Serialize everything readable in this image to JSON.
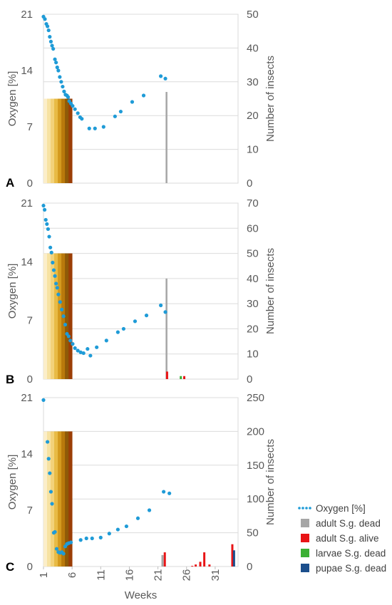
{
  "chart_data": [
    {
      "type": "scatter",
      "panel_label": "A",
      "ylabel_left": "Oxygen [%]",
      "ylabel_right": "Number of insects",
      "y_left_ticks": [
        0,
        7,
        14,
        21
      ],
      "y_right_ticks": [
        0,
        10,
        20,
        30,
        40,
        50
      ],
      "ylim_left": [
        0,
        21
      ],
      "ylim_right": [
        0,
        50
      ],
      "grid": true,
      "oxygen": [
        [
          1,
          20.7
        ],
        [
          1.25,
          20.4
        ],
        [
          1.5,
          19.8
        ],
        [
          1.7,
          19.5
        ],
        [
          1.9,
          19.0
        ],
        [
          2.1,
          18.2
        ],
        [
          2.3,
          17.6
        ],
        [
          2.5,
          17.1
        ],
        [
          2.7,
          16.7
        ],
        [
          3.0,
          15.4
        ],
        [
          3.2,
          15.0
        ],
        [
          3.4,
          14.4
        ],
        [
          3.6,
          14.0
        ],
        [
          3.85,
          13.2
        ],
        [
          4.1,
          12.6
        ],
        [
          4.35,
          12.0
        ],
        [
          4.6,
          11.4
        ],
        [
          4.85,
          11.0
        ],
        [
          5.1,
          10.9
        ],
        [
          5.3,
          10.7
        ],
        [
          5.5,
          10.2
        ],
        [
          5.8,
          9.9
        ],
        [
          6.1,
          9.6
        ],
        [
          6.5,
          9.2
        ],
        [
          7.0,
          8.7
        ],
        [
          7.4,
          8.2
        ],
        [
          7.7,
          8.0
        ],
        [
          9.0,
          6.8
        ],
        [
          10.0,
          6.8
        ],
        [
          11.5,
          7.0
        ],
        [
          13.5,
          8.3
        ],
        [
          14.5,
          8.9
        ],
        [
          16.5,
          10.1
        ],
        [
          18.5,
          10.9
        ],
        [
          21.5,
          13.3
        ],
        [
          22.3,
          13.0
        ]
      ],
      "insect_bars": [
        {
          "series": "adult S.g. dead",
          "week": 22.5,
          "value": 27
        }
      ],
      "development_value": 25
    },
    {
      "type": "scatter",
      "panel_label": "B",
      "ylabel_left": "Oxygen [%]",
      "ylabel_right": "Number of insects",
      "y_left_ticks": [
        0,
        7,
        14,
        21
      ],
      "y_right_ticks": [
        0,
        10,
        20,
        30,
        40,
        50,
        60,
        70
      ],
      "ylim_left": [
        0,
        21
      ],
      "ylim_right": [
        0,
        70
      ],
      "grid": true,
      "oxygen": [
        [
          1,
          20.7
        ],
        [
          1.2,
          20.2
        ],
        [
          1.4,
          19.0
        ],
        [
          1.6,
          18.5
        ],
        [
          1.8,
          17.9
        ],
        [
          2.0,
          17.0
        ],
        [
          2.2,
          15.7
        ],
        [
          2.4,
          15.1
        ],
        [
          2.6,
          13.9
        ],
        [
          2.8,
          13.0
        ],
        [
          3.0,
          12.3
        ],
        [
          3.2,
          11.4
        ],
        [
          3.4,
          10.9
        ],
        [
          3.6,
          10.1
        ],
        [
          3.9,
          9.2
        ],
        [
          4.2,
          8.3
        ],
        [
          4.5,
          7.5
        ],
        [
          4.8,
          6.5
        ],
        [
          5.1,
          5.4
        ],
        [
          5.4,
          5.1
        ],
        [
          5.7,
          4.6
        ],
        [
          6.1,
          4.2
        ],
        [
          6.5,
          3.7
        ],
        [
          7.0,
          3.4
        ],
        [
          7.5,
          3.2
        ],
        [
          8.0,
          3.1
        ],
        [
          8.7,
          3.6
        ],
        [
          9.2,
          2.8
        ],
        [
          10.3,
          3.8
        ],
        [
          12.0,
          4.6
        ],
        [
          14.0,
          5.6
        ],
        [
          15.0,
          6.0
        ],
        [
          17.0,
          6.9
        ],
        [
          19.0,
          7.6
        ],
        [
          21.5,
          8.8
        ],
        [
          22.3,
          8.0
        ]
      ],
      "insect_bars": [
        {
          "series": "adult S.g. dead",
          "week": 22.5,
          "value": 40
        },
        {
          "series": "adult S.g. alive",
          "week": 22.6,
          "value": 3
        },
        {
          "series": "adult S.g. alive",
          "week": 25.6,
          "value": 1.2
        },
        {
          "series": "larvae S.g. dead",
          "week": 25.0,
          "value": 1.2
        }
      ],
      "development_value": 50
    },
    {
      "type": "scatter",
      "panel_label": "C",
      "ylabel_left": "Oxygen [%]",
      "ylabel_right": "Number of insects",
      "xlabel": "Weeks",
      "x_ticks": [
        1,
        6,
        11,
        16,
        21,
        26,
        31
      ],
      "y_left_ticks": [
        0,
        7,
        14,
        21
      ],
      "y_right_ticks": [
        0,
        50,
        100,
        150,
        200,
        250
      ],
      "ylim_left": [
        0,
        21
      ],
      "ylim_right": [
        0,
        250
      ],
      "grid": true,
      "oxygen": [
        [
          1,
          20.7
        ],
        [
          1.7,
          15.5
        ],
        [
          1.9,
          13.4
        ],
        [
          2.1,
          11.6
        ],
        [
          2.3,
          9.3
        ],
        [
          2.5,
          7.8
        ],
        [
          2.8,
          4.2
        ],
        [
          3.0,
          4.3
        ],
        [
          3.3,
          2.2
        ],
        [
          3.6,
          1.8
        ],
        [
          3.9,
          1.7
        ],
        [
          4.2,
          1.8
        ],
        [
          4.5,
          1.6
        ],
        [
          4.8,
          2.5
        ],
        [
          5.1,
          2.8
        ],
        [
          5.4,
          2.9
        ],
        [
          5.8,
          3.0
        ],
        [
          7.5,
          3.3
        ],
        [
          8.5,
          3.5
        ],
        [
          9.5,
          3.5
        ],
        [
          11.0,
          3.6
        ],
        [
          12.5,
          4.1
        ],
        [
          14.0,
          4.6
        ],
        [
          15.5,
          5.0
        ],
        [
          17.5,
          6.0
        ],
        [
          19.5,
          7.0
        ],
        [
          22.0,
          9.3
        ],
        [
          23.0,
          9.1
        ]
      ],
      "insect_bars": [
        {
          "series": "adult S.g. dead",
          "week": 21.8,
          "value": 17
        },
        {
          "series": "adult S.g. alive",
          "week": 22.2,
          "value": 21
        },
        {
          "series": "adult S.g. alive",
          "week": 27.0,
          "value": 1
        },
        {
          "series": "adult S.g. alive",
          "week": 27.6,
          "value": 3
        },
        {
          "series": "adult S.g. alive",
          "week": 28.4,
          "value": 7
        },
        {
          "series": "adult S.g. alive",
          "week": 29.1,
          "value": 21
        },
        {
          "series": "adult S.g. alive",
          "week": 30.0,
          "value": 3
        },
        {
          "series": "adult S.g. alive",
          "week": 34.0,
          "value": 33
        },
        {
          "series": "pupae S.g. dead",
          "week": 34.3,
          "value": 24
        }
      ],
      "development_value": 200
    }
  ],
  "legend": [
    {
      "label": "Oxygen [%]",
      "kind": "dots",
      "color": "#1f9bd7"
    },
    {
      "label": "adult S.g. dead",
      "kind": "box",
      "color": "#a6a6a6"
    },
    {
      "label": "adult S.g. alive",
      "kind": "box",
      "color": "#e81416"
    },
    {
      "label": "larvae S.g. dead",
      "kind": "box",
      "color": "#3cb034"
    },
    {
      "label": "pupae S.g. dead",
      "kind": "box",
      "color": "#1c4f8c"
    }
  ],
  "colors": {
    "oxygen": "#1f9bd7",
    "adult S.g. dead": "#a6a6a6",
    "adult S.g. alive": "#e81416",
    "larvae S.g. dead": "#3cb034",
    "pupae S.g. dead": "#1c4f8c",
    "development_gradient": [
      "#fbeeca",
      "#f7e2a1",
      "#f3d27a",
      "#e8bb45",
      "#d49a1e",
      "#b9790c",
      "#8f5a08",
      "#9b3e06"
    ]
  }
}
